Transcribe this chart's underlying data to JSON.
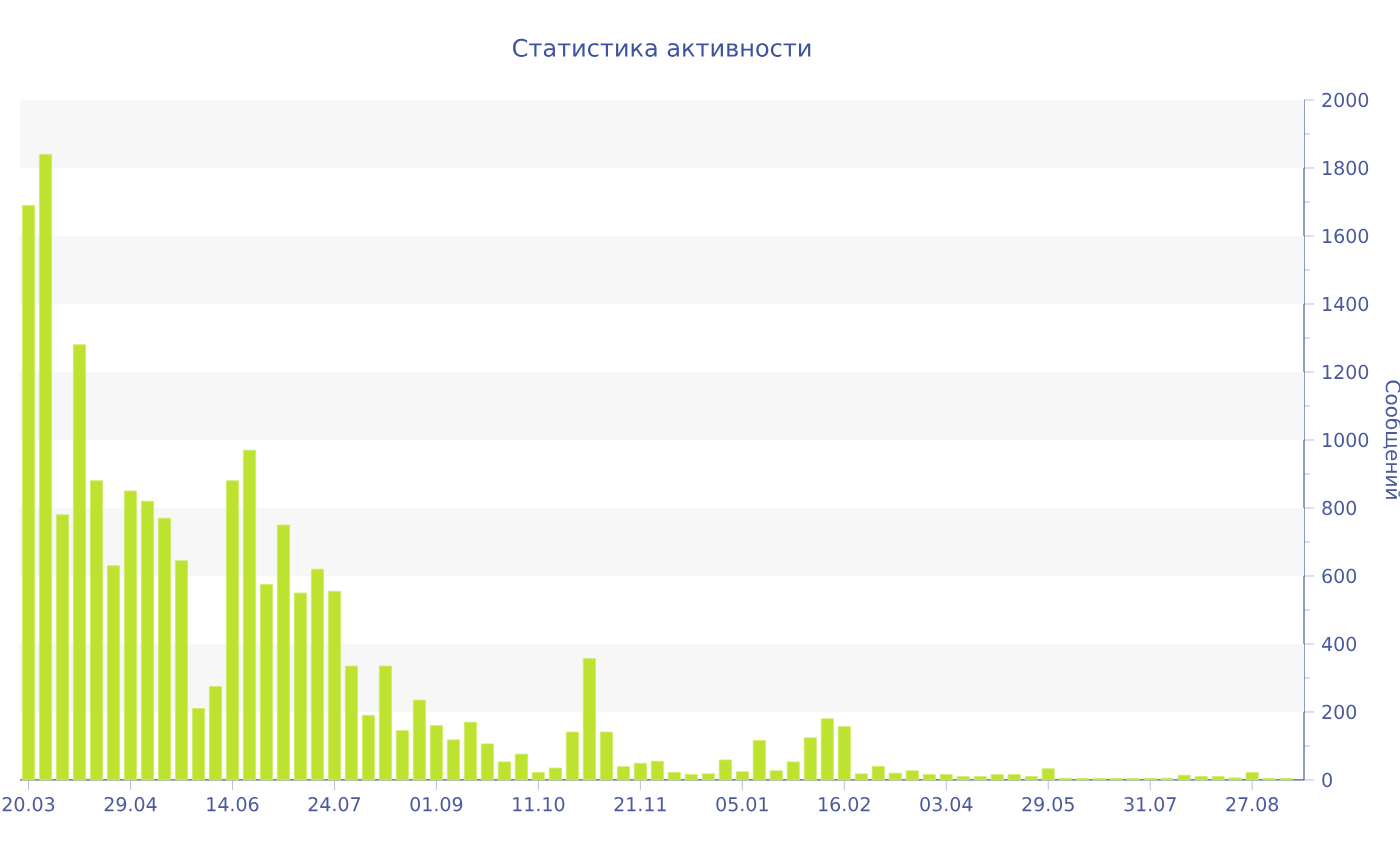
{
  "chart_data": {
    "type": "bar",
    "title": "Статистика активности",
    "ylabel": "Сообщений",
    "categories": [
      "20.03",
      null,
      null,
      null,
      null,
      null,
      "29.04",
      null,
      null,
      null,
      null,
      null,
      "14.06",
      null,
      null,
      null,
      null,
      null,
      "24.07",
      null,
      null,
      null,
      null,
      null,
      "01.09",
      null,
      null,
      null,
      null,
      null,
      "11.10",
      null,
      null,
      null,
      null,
      null,
      "21.11",
      null,
      null,
      null,
      null,
      null,
      "05.01",
      null,
      null,
      null,
      null,
      null,
      "16.02",
      null,
      null,
      null,
      null,
      null,
      "03.04",
      null,
      null,
      null,
      null,
      null,
      "29.05",
      null,
      null,
      null,
      null,
      null,
      "31.07",
      null,
      null,
      null,
      null,
      null,
      "27.08",
      null,
      null
    ],
    "values": [
      1690,
      1840,
      780,
      1280,
      880,
      630,
      850,
      820,
      770,
      645,
      210,
      275,
      880,
      970,
      575,
      750,
      550,
      620,
      555,
      335,
      190,
      335,
      145,
      235,
      160,
      118,
      170,
      106,
      53,
      76,
      22,
      35,
      141,
      357,
      141,
      39,
      49,
      55,
      22,
      16,
      18,
      59,
      24,
      116,
      27,
      53,
      124,
      180,
      157,
      18,
      40,
      20,
      27,
      16,
      16,
      10,
      10,
      16,
      16,
      10,
      33,
      5,
      5,
      5,
      5,
      5,
      5,
      5,
      14,
      10,
      10,
      6,
      22,
      5,
      5
    ],
    "color": "#bde22f",
    "ylim": [
      0,
      2000
    ],
    "yticks": [
      0,
      200,
      400,
      600,
      800,
      1000,
      1200,
      1400,
      1600,
      1800,
      2000
    ],
    "bands": [
      {
        "axis": "y",
        "from": 200,
        "to": 400,
        "color": "#f7f7f7"
      },
      {
        "axis": "y",
        "from": 600,
        "to": 800,
        "color": "#f7f7f7"
      },
      {
        "axis": "y",
        "from": 1000,
        "to": 1200,
        "color": "#f7f7f7"
      },
      {
        "axis": "y",
        "from": 1400,
        "to": 1600,
        "color": "#f7f7f7"
      },
      {
        "axis": "y",
        "from": 1800,
        "to": 2000,
        "color": "#f7f7f7"
      }
    ]
  }
}
